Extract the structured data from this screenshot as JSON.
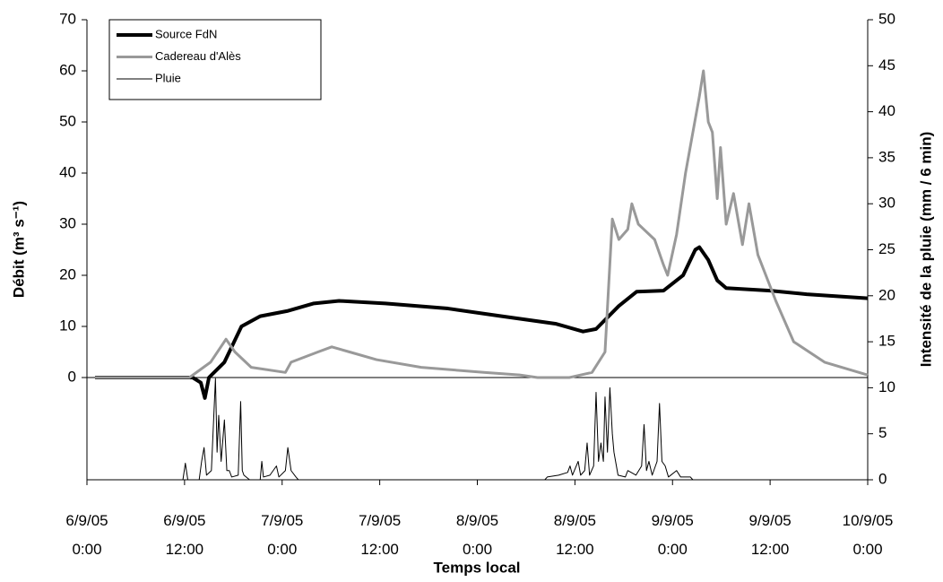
{
  "chart_data": {
    "type": "line",
    "x_label": "Temps local",
    "y_label": "Débit (m³ s⁻¹)",
    "y2_label": "Intensité de la pluie (mm / 6 min)",
    "xlim": [
      0,
      96
    ],
    "xticks": [
      {
        "value": 0,
        "label": "6/9/05\n0:00"
      },
      {
        "value": 12,
        "label": "6/9/05\n12:00"
      },
      {
        "value": 24,
        "label": "7/9/05\n0:00"
      },
      {
        "value": 36,
        "label": "7/9/05\n12:00"
      },
      {
        "value": 48,
        "label": "8/9/05\n0:00"
      },
      {
        "value": 60,
        "label": "8/9/05\n12:00"
      },
      {
        "value": 72,
        "label": "9/9/05\n0:00"
      },
      {
        "value": 84,
        "label": "9/9/05\n12:00"
      },
      {
        "value": 96,
        "label": "10/9/05\n0:00"
      }
    ],
    "ylim": [
      -20,
      70
    ],
    "yticks": [
      0,
      10,
      20,
      30,
      40,
      50,
      60,
      70
    ],
    "y2lim": [
      0,
      50
    ],
    "y2ticks": [
      0,
      5,
      10,
      15,
      20,
      25,
      30,
      35,
      40,
      45,
      50
    ],
    "series": [
      {
        "name": "Source FdN",
        "color": "#000000",
        "width": 4,
        "x": [
          1,
          13,
          14,
          14.5,
          15,
          16.9,
          19,
          21.3,
          24.6,
          27.9,
          31,
          36.7,
          44.4,
          51,
          57.7,
          61,
          62.6,
          65.4,
          67.6,
          70.9,
          73.3,
          74.8,
          75.3,
          76.4,
          77.5,
          78.6,
          84,
          88.5,
          96
        ],
        "values": [
          0,
          0,
          -1,
          -4,
          0,
          3,
          10,
          12,
          13,
          14.5,
          15,
          14.5,
          13.5,
          12,
          10.5,
          9,
          9.5,
          14,
          16.8,
          17,
          20,
          25,
          25.5,
          23,
          19,
          17.5,
          17,
          16.3,
          15.5
        ]
      },
      {
        "name": "Cadereau d'Alès",
        "color": "#999999",
        "width": 3,
        "x": [
          1,
          12.6,
          15.2,
          17.1,
          18.2,
          20.2,
          24.4,
          25.1,
          28.4,
          30.1,
          32.3,
          35.6,
          41.1,
          48.8,
          53.2,
          55.4,
          59.3,
          62.1,
          63.7,
          64.6,
          65.4,
          66.5,
          67,
          67.8,
          69.8,
          70.9,
          71.4,
          72.5,
          73.6,
          75.3,
          75.8,
          76.4,
          76.9,
          77.5,
          77.9,
          78.6,
          79.5,
          80.6,
          81.4,
          82.5,
          84.7,
          86.9,
          90.7,
          96
        ],
        "values": [
          0,
          0,
          3,
          7.5,
          5,
          2,
          1,
          3,
          5,
          6,
          5,
          3.5,
          2,
          1,
          0.5,
          0,
          0,
          1,
          5,
          31,
          27,
          29,
          34,
          30,
          27,
          22,
          20,
          28,
          40,
          55,
          60,
          50,
          48,
          35,
          45,
          30,
          36,
          26,
          34,
          24,
          15,
          7,
          3,
          0.5
        ]
      },
      {
        "name": "Pluie",
        "color": "#000000",
        "width": 1,
        "axis": "y2",
        "x": [
          1,
          11.8,
          12.1,
          12.4,
          13.8,
          14.1,
          14.4,
          14.7,
          15.3,
          15.8,
          16,
          16.2,
          16.5,
          16.9,
          17.2,
          17.5,
          17.8,
          18.6,
          18.9,
          19.1,
          19.3,
          20,
          21.3,
          21.5,
          21.7,
          22.5,
          23.3,
          23.6,
          24.4,
          24.7,
          25.1,
          25.7,
          26,
          56.3,
          56.6,
          58,
          59.1,
          59.4,
          59.7,
          60.4,
          60.7,
          61.2,
          61.5,
          61.8,
          62.3,
          62.6,
          62.9,
          63.2,
          63.5,
          63.7,
          64,
          64.3,
          64.6,
          64.8,
          65.3,
          66.2,
          66.5,
          67.5,
          68.2,
          68.5,
          68.8,
          69.1,
          69.5,
          70.1,
          70.4,
          70.7,
          71.1,
          71.5,
          72.5,
          73,
          74.2,
          74.5
        ],
        "values": [
          0,
          0,
          1.8,
          0,
          0,
          2,
          3.5,
          0.5,
          1,
          11,
          3,
          7,
          2,
          6.5,
          1,
          1,
          0.3,
          0.5,
          8.5,
          1,
          0.5,
          0,
          0,
          2,
          0.3,
          0.5,
          1.5,
          0.3,
          1,
          3.5,
          1,
          0.3,
          0,
          0,
          0.3,
          0.5,
          0.8,
          1.5,
          0.5,
          2,
          0.5,
          1,
          4,
          0.5,
          1.5,
          9.5,
          2,
          4,
          2,
          9,
          3,
          10,
          5,
          3,
          0.5,
          0.3,
          1,
          0.5,
          1.5,
          6,
          1,
          2,
          0.5,
          2,
          8.3,
          2,
          1.5,
          0.3,
          1,
          0.3,
          0.3,
          0
        ]
      }
    ]
  }
}
